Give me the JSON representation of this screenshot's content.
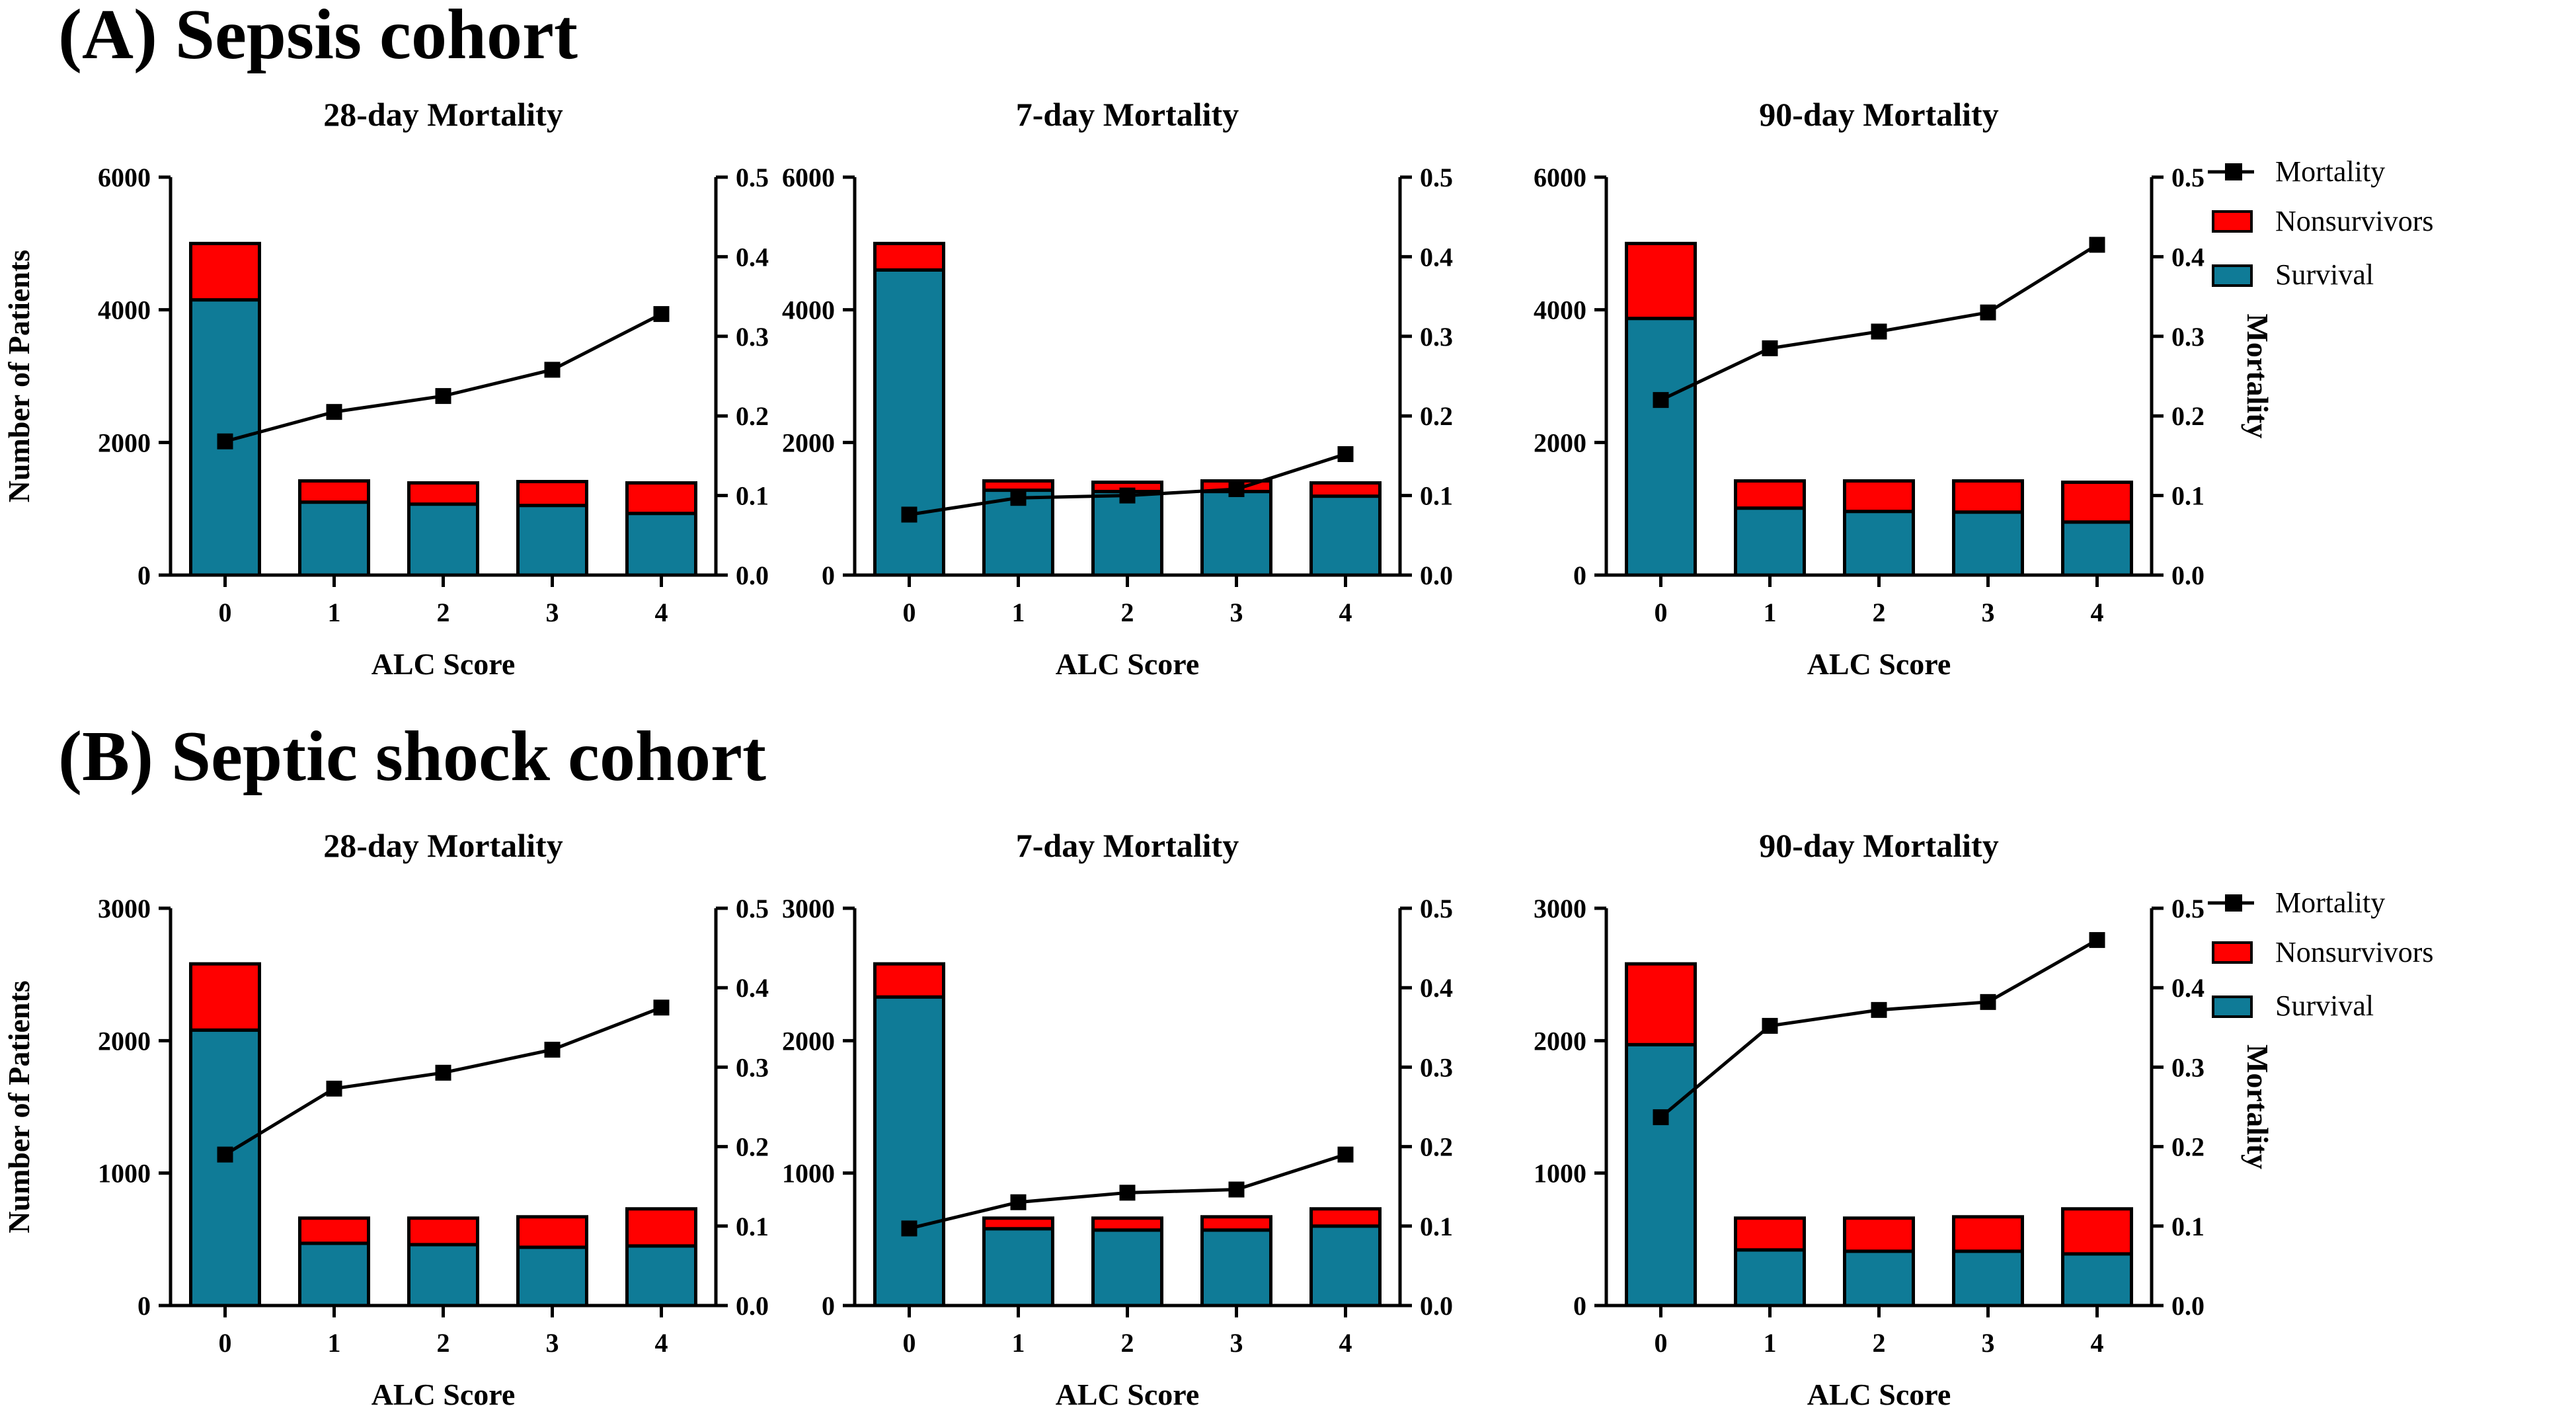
{
  "sections": [
    {
      "title": "(A) Sepsis cohort"
    },
    {
      "title": "(B) Septic shock cohort"
    }
  ],
  "legend": {
    "mortality": "Mortality",
    "nonsurvivors": "Nonsurvivors",
    "survival": "Survival"
  },
  "colors": {
    "survival": "#0f7b97",
    "nonsurvivors": "#ff0000",
    "line": "#000000",
    "axis": "#000000"
  },
  "chart_data": [
    {
      "type": "bar",
      "stacked": true,
      "section": 0,
      "title": "28-day Mortality",
      "xlabel": "ALC Score",
      "ylabel": "Number of Patients",
      "y2label": "",
      "categories": [
        "0",
        "1",
        "2",
        "3",
        "4"
      ],
      "ylim": [
        0,
        6000
      ],
      "yticks": [
        "0",
        "2000",
        "4000",
        "6000"
      ],
      "y2lim": [
        0,
        0.5
      ],
      "y2ticks": [
        "0.0",
        "0.1",
        "0.2",
        "0.3",
        "0.4",
        "0.5"
      ],
      "series": [
        {
          "name": "Survival",
          "values": [
            4150,
            1100,
            1070,
            1050,
            930
          ]
        },
        {
          "name": "Nonsurvivors",
          "values": [
            850,
            320,
            320,
            360,
            460
          ]
        },
        {
          "name": "Mortality",
          "axis": "right",
          "values": [
            0.168,
            0.205,
            0.225,
            0.258,
            0.328
          ]
        }
      ],
      "legend": false
    },
    {
      "type": "bar",
      "stacked": true,
      "section": 0,
      "title": "7-day Mortality",
      "xlabel": "ALC Score",
      "ylabel": "",
      "y2label": "",
      "categories": [
        "0",
        "1",
        "2",
        "3",
        "4"
      ],
      "ylim": [
        0,
        6000
      ],
      "yticks": [
        "0",
        "2000",
        "4000",
        "6000"
      ],
      "y2lim": [
        0,
        0.5
      ],
      "y2ticks": [
        "0.0",
        "0.1",
        "0.2",
        "0.3",
        "0.4",
        "0.5"
      ],
      "series": [
        {
          "name": "Survival",
          "values": [
            4600,
            1280,
            1260,
            1260,
            1190
          ]
        },
        {
          "name": "Nonsurvivors",
          "values": [
            400,
            140,
            140,
            160,
            200
          ]
        },
        {
          "name": "Mortality",
          "axis": "right",
          "values": [
            0.076,
            0.097,
            0.1,
            0.108,
            0.152
          ]
        }
      ],
      "legend": false
    },
    {
      "type": "bar",
      "stacked": true,
      "section": 0,
      "title": "90-day Mortality",
      "xlabel": "ALC Score",
      "ylabel": "",
      "y2label": "Mortality",
      "categories": [
        "0",
        "1",
        "2",
        "3",
        "4"
      ],
      "ylim": [
        0,
        6000
      ],
      "yticks": [
        "0",
        "2000",
        "4000",
        "6000"
      ],
      "y2lim": [
        0,
        0.5
      ],
      "y2ticks": [
        "0.0",
        "0.1",
        "0.2",
        "0.3",
        "0.4",
        "0.5"
      ],
      "series": [
        {
          "name": "Survival",
          "values": [
            3870,
            1010,
            960,
            950,
            800
          ]
        },
        {
          "name": "Nonsurvivors",
          "values": [
            1130,
            410,
            460,
            470,
            600
          ]
        },
        {
          "name": "Mortality",
          "axis": "right",
          "values": [
            0.22,
            0.285,
            0.306,
            0.33,
            0.415
          ]
        }
      ],
      "legend": true
    },
    {
      "type": "bar",
      "stacked": true,
      "section": 1,
      "title": "28-day Mortality",
      "xlabel": "ALC Score",
      "ylabel": "Number of Patients",
      "y2label": "",
      "categories": [
        "0",
        "1",
        "2",
        "3",
        "4"
      ],
      "ylim": [
        0,
        3000
      ],
      "yticks": [
        "0",
        "1000",
        "2000",
        "3000"
      ],
      "y2lim": [
        0,
        0.5
      ],
      "y2ticks": [
        "0.0",
        "0.1",
        "0.2",
        "0.3",
        "0.4",
        "0.5"
      ],
      "series": [
        {
          "name": "Survival",
          "values": [
            2080,
            470,
            460,
            440,
            450
          ]
        },
        {
          "name": "Nonsurvivors",
          "values": [
            500,
            190,
            200,
            230,
            280
          ]
        },
        {
          "name": "Mortality",
          "axis": "right",
          "values": [
            0.19,
            0.273,
            0.293,
            0.322,
            0.375
          ]
        }
      ],
      "legend": false
    },
    {
      "type": "bar",
      "stacked": true,
      "section": 1,
      "title": "7-day Mortality",
      "xlabel": "ALC Score",
      "ylabel": "",
      "y2label": "",
      "categories": [
        "0",
        "1",
        "2",
        "3",
        "4"
      ],
      "ylim": [
        0,
        3000
      ],
      "yticks": [
        "0",
        "1000",
        "2000",
        "3000"
      ],
      "y2lim": [
        0,
        0.5
      ],
      "y2ticks": [
        "0.0",
        "0.1",
        "0.2",
        "0.3",
        "0.4",
        "0.5"
      ],
      "series": [
        {
          "name": "Survival",
          "values": [
            2330,
            580,
            570,
            570,
            600
          ]
        },
        {
          "name": "Nonsurvivors",
          "values": [
            250,
            80,
            90,
            100,
            130
          ]
        },
        {
          "name": "Mortality",
          "axis": "right",
          "values": [
            0.097,
            0.13,
            0.142,
            0.146,
            0.19
          ]
        }
      ],
      "legend": false
    },
    {
      "type": "bar",
      "stacked": true,
      "section": 1,
      "title": "90-day Mortality",
      "xlabel": "ALC Score",
      "ylabel": "",
      "y2label": "Mortality",
      "categories": [
        "0",
        "1",
        "2",
        "3",
        "4"
      ],
      "ylim": [
        0,
        3000
      ],
      "yticks": [
        "0",
        "1000",
        "2000",
        "3000"
      ],
      "y2lim": [
        0,
        0.5
      ],
      "y2ticks": [
        "0.0",
        "0.1",
        "0.2",
        "0.3",
        "0.4",
        "0.5"
      ],
      "series": [
        {
          "name": "Survival",
          "values": [
            1970,
            420,
            410,
            410,
            390
          ]
        },
        {
          "name": "Nonsurvivors",
          "values": [
            610,
            240,
            250,
            260,
            340
          ]
        },
        {
          "name": "Mortality",
          "axis": "right",
          "values": [
            0.237,
            0.352,
            0.372,
            0.382,
            0.46
          ]
        }
      ],
      "legend": true
    }
  ]
}
